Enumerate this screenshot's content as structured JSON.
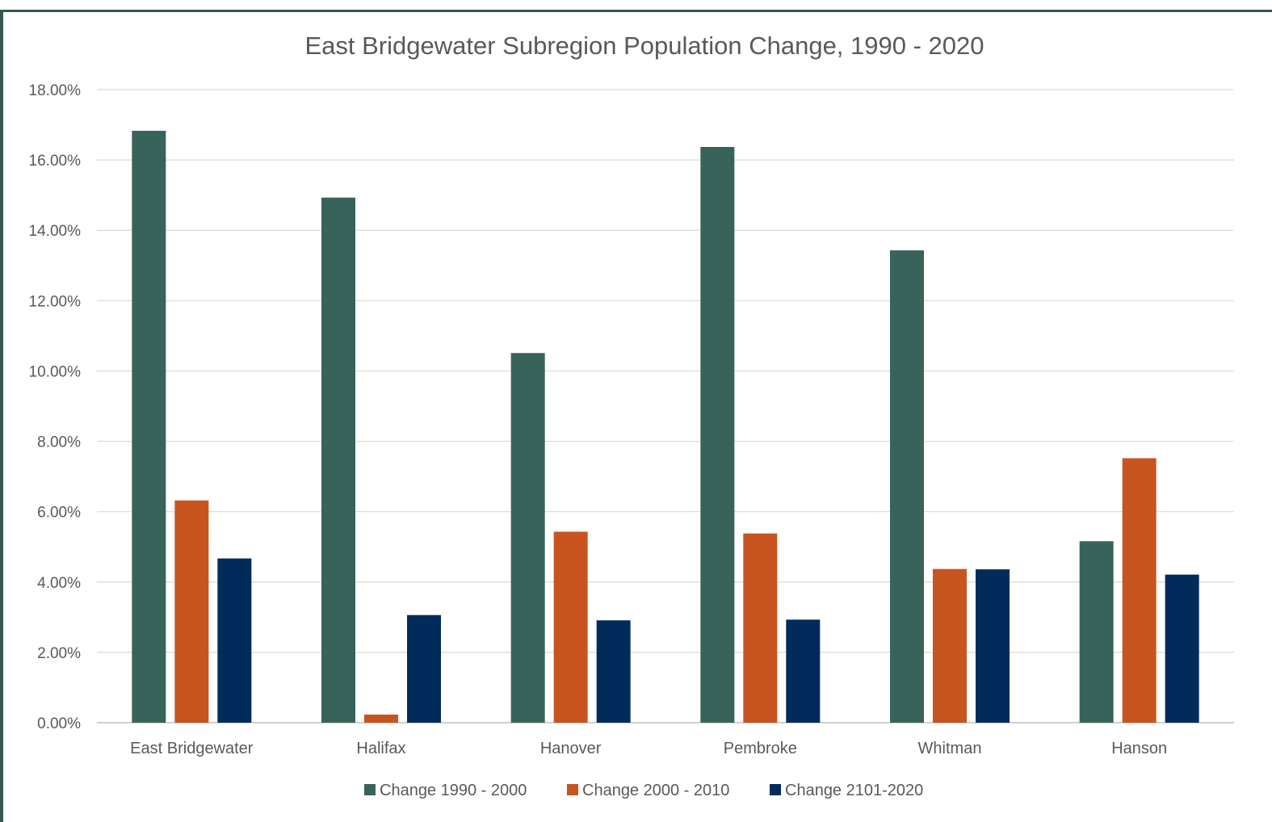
{
  "chart_data": {
    "type": "bar",
    "title": "East Bridgewater Subregion Population Change, 1990 - 2020",
    "xlabel": "",
    "ylabel": "",
    "ylim": [
      0,
      18
    ],
    "yticks": [
      "0.00%",
      "2.00%",
      "4.00%",
      "6.00%",
      "8.00%",
      "10.00%",
      "12.00%",
      "14.00%",
      "16.00%",
      "18.00%"
    ],
    "grid": true,
    "legend_position": "bottom",
    "categories": [
      "East Bridgewater",
      "Halifax",
      "Hanover",
      "Pembroke",
      "Whitman",
      "Hanson"
    ],
    "series": [
      {
        "name": "Change 1990 - 2000",
        "color": "#38635a",
        "values": [
          16.83,
          14.93,
          10.51,
          16.37,
          13.43,
          5.16
        ]
      },
      {
        "name": "Change 2000 - 2010",
        "color": "#c8541f",
        "values": [
          6.32,
          0.23,
          5.43,
          5.38,
          4.37,
          7.52
        ]
      },
      {
        "name": "Change 2101-2020",
        "color": "#002b5b",
        "values": [
          4.67,
          3.06,
          2.91,
          2.93,
          4.36,
          4.21
        ]
      }
    ]
  }
}
